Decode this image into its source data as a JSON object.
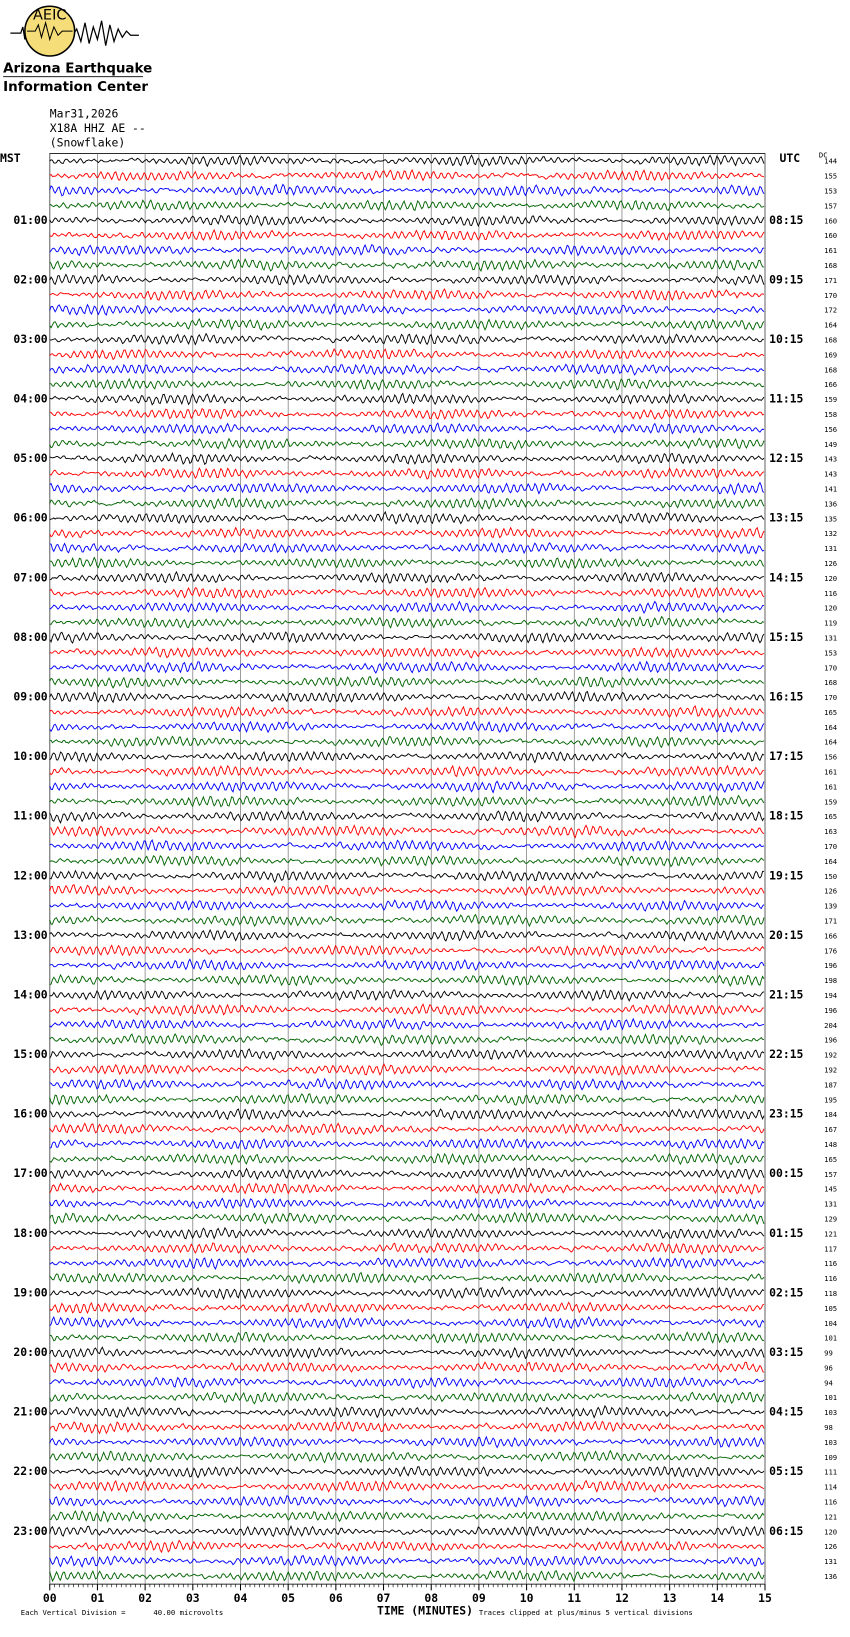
{
  "header": {
    "logo": "AEIC",
    "org_line1": "Arizona Earthquake",
    "org_line2": "Information Center",
    "date": "Mar31,2026",
    "station": "X18A HHZ AE --",
    "location": "(Snowflake)"
  },
  "chart_data": {
    "type": "helicorder",
    "left_axis_label": "MST",
    "right_axis_label": "UTC",
    "dc_label": "DC",
    "left_times": [
      null,
      "01:00",
      "02:00",
      "03:00",
      "04:00",
      "05:00",
      "06:00",
      "07:00",
      "08:00",
      "09:00",
      "10:00",
      "11:00",
      "12:00",
      "13:00",
      "14:00",
      "15:00",
      "16:00",
      "17:00",
      "18:00",
      "19:00",
      "20:00",
      "21:00",
      "22:00",
      "23:00"
    ],
    "right_times": [
      null,
      "08:15",
      "09:15",
      "10:15",
      "11:15",
      "12:15",
      "13:15",
      "14:15",
      "15:15",
      "16:15",
      "17:15",
      "18:15",
      "19:15",
      "20:15",
      "21:15",
      "22:15",
      "23:15",
      "00:15",
      "01:15",
      "02:15",
      "03:15",
      "04:15",
      "05:15",
      "06:15"
    ],
    "dc_offsets": [
      144,
      155,
      153,
      157,
      160,
      160,
      161,
      168,
      171,
      170,
      172,
      164,
      168,
      169,
      168,
      166,
      159,
      158,
      156,
      149,
      143,
      143,
      141,
      136,
      135,
      132,
      131,
      126,
      120,
      116,
      120,
      119,
      131,
      153,
      170,
      168,
      170,
      165,
      164,
      164,
      156,
      161,
      161,
      159,
      165,
      163,
      170,
      164,
      150,
      126,
      139,
      171,
      166,
      176,
      196,
      198,
      194,
      196,
      204,
      196,
      192,
      192,
      187,
      195,
      184,
      167,
      148,
      165,
      157,
      145,
      131,
      129,
      121,
      117,
      116,
      116,
      118,
      105,
      104,
      101,
      99,
      96,
      94,
      101,
      103,
      98,
      103,
      109,
      111,
      114,
      116,
      121,
      120,
      126,
      131,
      136
    ],
    "trace_colors": [
      "#000000",
      "#ff0000",
      "#0000ff",
      "#006400"
    ],
    "xlim": [
      0,
      15
    ],
    "xticks": [
      {
        "value": 0,
        "label": "00"
      },
      {
        "value": 1,
        "label": "01"
      },
      {
        "value": 2,
        "label": "02"
      },
      {
        "value": 3,
        "label": "03"
      },
      {
        "value": 4,
        "label": "04"
      },
      {
        "value": 5,
        "label": "05"
      },
      {
        "value": 6,
        "label": "06"
      },
      {
        "value": 7,
        "label": "07"
      },
      {
        "value": 8,
        "label": "08"
      },
      {
        "value": 9,
        "label": "09"
      },
      {
        "value": 10,
        "label": "10"
      },
      {
        "value": 11,
        "label": "11"
      },
      {
        "value": 12,
        "label": "12"
      },
      {
        "value": 13,
        "label": "13"
      },
      {
        "value": 14,
        "label": "14"
      },
      {
        "value": 15,
        "label": "15"
      }
    ],
    "xlabel": "TIME (MINUTES)",
    "scale_note": "Each Vertical Division =",
    "scale_value": "40.00 microvolts",
    "clip_note": "Traces clipped at plus/minus 5 vertical divisions",
    "grid": true
  }
}
